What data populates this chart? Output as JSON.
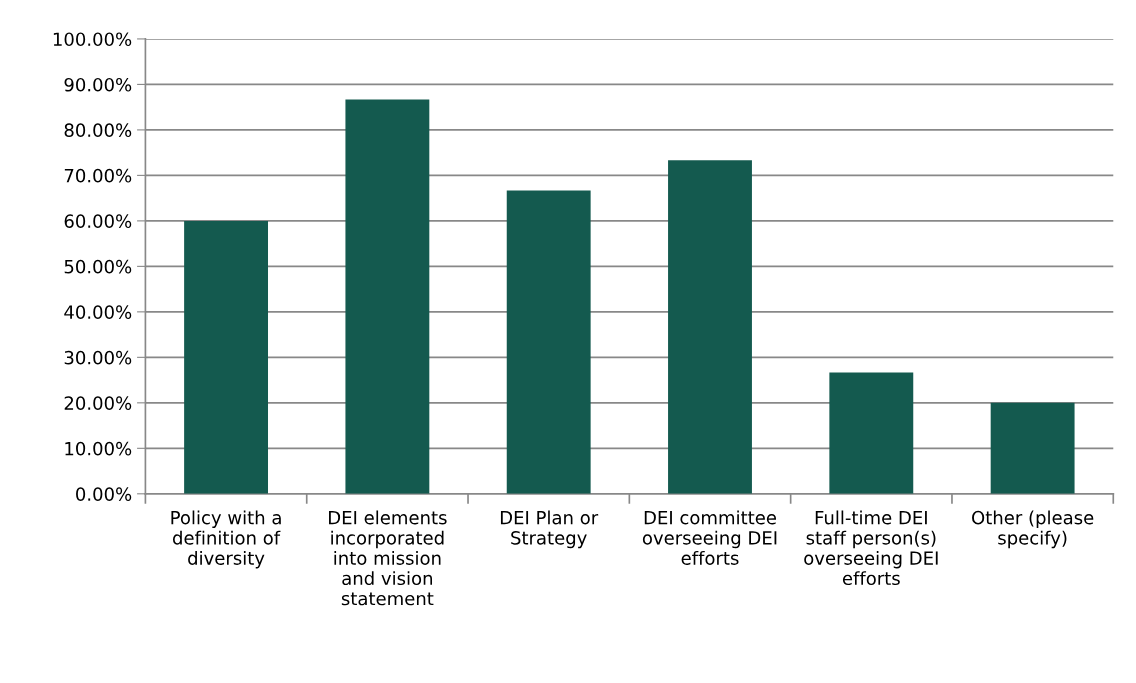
{
  "chart_data": {
    "type": "bar",
    "categories": [
      "Policy with a\ndefinition of\ndiversity",
      "DEI elements\nincorporated\ninto mission\nand vision\nstatement",
      "DEI Plan or\nStrategy",
      "DEI committee\noverseeing DEI\nefforts",
      "Full-time DEI\nstaff person(s)\noverseeing DEI\nefforts",
      "Other (please\nspecify)"
    ],
    "values": [
      60.0,
      86.67,
      66.67,
      73.33,
      26.67,
      20.0
    ],
    "color": "#145a4f",
    "ylim": [
      0,
      100
    ],
    "yticks": [
      {
        "value": 0,
        "label": "0.00%"
      },
      {
        "value": 10,
        "label": "10.00%"
      },
      {
        "value": 20,
        "label": "20.00%"
      },
      {
        "value": 30,
        "label": "30.00%"
      },
      {
        "value": 40,
        "label": "40.00%"
      },
      {
        "value": 50,
        "label": "50.00%"
      },
      {
        "value": 60,
        "label": "60.00%"
      },
      {
        "value": 70,
        "label": "70.00%"
      },
      {
        "value": 80,
        "label": "80.00%"
      },
      {
        "value": 90,
        "label": "90.00%"
      },
      {
        "value": 100,
        "label": "100.00%"
      }
    ],
    "grid": "y",
    "legend": false
  }
}
